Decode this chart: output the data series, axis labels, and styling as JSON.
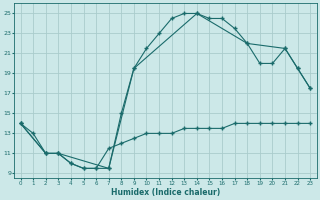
{
  "xlabel": "Humidex (Indice chaleur)",
  "bg_color": "#cce8e8",
  "grid_color": "#aacccc",
  "line_color": "#1a6b6b",
  "xlim": [
    -0.5,
    23.5
  ],
  "ylim": [
    8.5,
    26
  ],
  "xticks": [
    0,
    1,
    2,
    3,
    4,
    5,
    6,
    7,
    8,
    9,
    10,
    11,
    12,
    13,
    14,
    15,
    16,
    17,
    18,
    19,
    20,
    21,
    22,
    23
  ],
  "yticks": [
    9,
    11,
    13,
    15,
    17,
    19,
    21,
    23,
    25
  ],
  "line1_x": [
    0,
    1,
    2,
    3,
    4,
    5,
    6,
    7,
    8,
    9,
    10,
    11,
    12,
    13,
    14,
    15,
    16,
    17,
    18,
    19,
    20,
    21,
    22,
    23
  ],
  "line1_y": [
    14,
    13,
    11,
    11,
    10,
    9.5,
    9.5,
    9.5,
    15,
    19.5,
    21.5,
    23,
    24.5,
    25,
    25,
    24.5,
    24.5,
    23.5,
    22,
    20,
    20,
    21.5,
    19.5,
    17.5
  ],
  "line2_x": [
    0,
    2,
    3,
    7,
    9,
    14,
    18,
    21,
    22,
    23
  ],
  "line2_y": [
    14,
    11,
    11,
    9.5,
    19.5,
    25,
    22,
    21.5,
    19.5,
    17.5
  ],
  "line3_x": [
    0,
    2,
    3,
    4,
    5,
    6,
    7,
    8,
    9,
    10,
    11,
    12,
    13,
    14,
    15,
    16,
    17,
    18,
    19,
    20,
    21,
    22,
    23
  ],
  "line3_y": [
    14,
    11,
    11,
    10,
    9.5,
    9.5,
    11.5,
    12,
    12.5,
    13,
    13,
    13,
    13.5,
    13.5,
    13.5,
    13.5,
    14,
    14,
    14,
    14,
    14,
    14,
    14
  ]
}
